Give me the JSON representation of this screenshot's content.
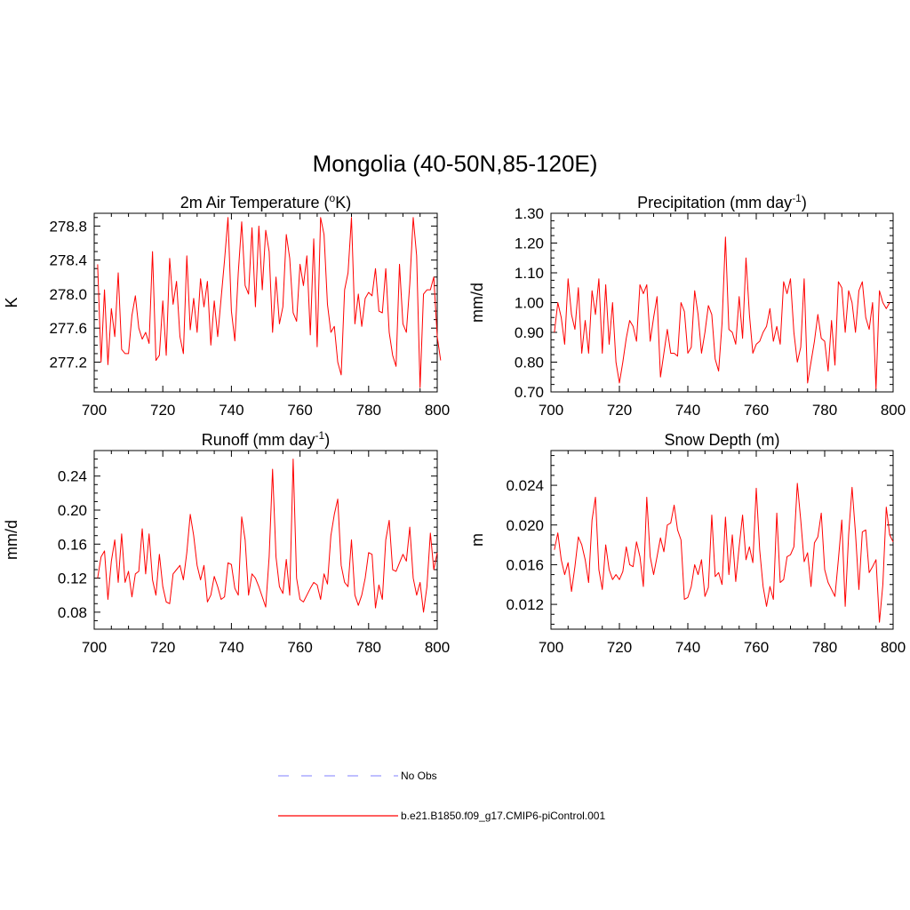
{
  "title": "Mongolia (40-50N,85-120E)",
  "colors": {
    "model": "#ff0000",
    "obs": "#9999ff",
    "axis": "#000000"
  },
  "legend": [
    {
      "label": "No Obs",
      "style": "dashed",
      "color": "#9999ff"
    },
    {
      "label": "b.e21.B1850.f09_g17.CMIP6-piControl.001",
      "style": "solid",
      "color": "#ff0000"
    }
  ],
  "chart_data": [
    {
      "type": "line",
      "title": "2m Air Temperature (",
      "title_sup": "o",
      "title_tail": "K)",
      "xlabel": "",
      "ylabel": "K",
      "xlim": [
        700,
        800
      ],
      "ylim": [
        276.85,
        278.95
      ],
      "xticks": [
        700,
        720,
        740,
        760,
        780,
        800
      ],
      "xtick_labels": [
        "700",
        "720",
        "740",
        "760",
        "780",
        "800"
      ],
      "yticks": [
        277.2,
        277.6,
        278.0,
        278.4,
        278.8
      ],
      "ytick_labels": [
        "277.2",
        "277.6",
        "278.0",
        "278.4",
        "278.8"
      ],
      "series": [
        {
          "name": "b.e21.B1850.f09_g17.CMIP6-piControl.001",
          "x_start": 701,
          "x_step": 1,
          "values": [
            278.35,
            277.2,
            278.05,
            277.17,
            277.83,
            277.5,
            278.25,
            277.35,
            277.3,
            277.3,
            277.75,
            277.98,
            277.6,
            277.47,
            277.55,
            277.42,
            278.5,
            277.22,
            277.28,
            277.92,
            277.28,
            278.42,
            277.88,
            278.15,
            277.5,
            277.3,
            278.45,
            277.58,
            277.95,
            277.55,
            278.18,
            277.85,
            278.15,
            277.4,
            277.92,
            277.5,
            277.95,
            278.4,
            278.9,
            277.8,
            277.45,
            278.25,
            278.85,
            278.1,
            278.0,
            278.78,
            277.85,
            278.8,
            278.05,
            278.75,
            278.5,
            277.55,
            278.2,
            277.65,
            277.85,
            278.7,
            278.42,
            277.78,
            277.68,
            278.35,
            278.1,
            278.45,
            277.52,
            278.65,
            277.38,
            278.9,
            278.7,
            277.88,
            277.55,
            277.62,
            277.2,
            277.05,
            278.05,
            278.25,
            278.9,
            277.65,
            278.0,
            277.62,
            277.95,
            278.02,
            277.98,
            278.3,
            277.8,
            277.78,
            278.3,
            277.55,
            277.28,
            277.15,
            278.35,
            277.65,
            277.55,
            278.12,
            278.9,
            278.45,
            276.9,
            278.0,
            278.05,
            278.05,
            278.2,
            277.5,
            277.22
          ]
        }
      ]
    },
    {
      "type": "line",
      "title": "Precipitation (mm day",
      "title_sup": "-1",
      "title_tail": ")",
      "xlabel": "",
      "ylabel": "mm/d",
      "xlim": [
        700,
        800
      ],
      "ylim": [
        0.7,
        1.3
      ],
      "xticks": [
        700,
        720,
        740,
        760,
        780,
        800
      ],
      "xtick_labels": [
        "700",
        "720",
        "740",
        "760",
        "780",
        "800"
      ],
      "yticks": [
        0.7,
        0.8,
        0.9,
        1.0,
        1.1,
        1.2,
        1.3
      ],
      "ytick_labels": [
        "0.70",
        "0.80",
        "0.90",
        "1.00",
        "1.10",
        "1.20",
        "1.30"
      ],
      "series": [
        {
          "name": "b.e21.B1850.f09_g17.CMIP6-piControl.001",
          "x_start": 701,
          "x_step": 1,
          "values": [
            0.9,
            1.0,
            0.95,
            0.86,
            1.08,
            0.96,
            0.91,
            1.05,
            0.83,
            0.94,
            0.83,
            1.04,
            0.96,
            1.08,
            0.83,
            1.06,
            0.86,
            1.0,
            0.8,
            0.73,
            0.8,
            0.88,
            0.94,
            0.92,
            0.87,
            1.06,
            1.03,
            1.06,
            0.87,
            0.95,
            1.02,
            0.75,
            0.83,
            0.91,
            0.83,
            0.83,
            0.82,
            1.0,
            0.97,
            0.83,
            0.85,
            1.04,
            0.96,
            0.83,
            0.9,
            0.99,
            0.96,
            0.81,
            0.77,
            0.93,
            1.22,
            0.91,
            0.9,
            0.86,
            1.02,
            0.88,
            1.15,
            0.96,
            0.83,
            0.86,
            0.87,
            0.9,
            0.92,
            0.98,
            0.87,
            0.92,
            0.86,
            1.07,
            1.03,
            1.08,
            0.9,
            0.8,
            0.85,
            1.08,
            0.73,
            0.8,
            0.87,
            0.96,
            0.88,
            0.87,
            0.77,
            0.94,
            0.79,
            1.07,
            1.05,
            0.9,
            1.04,
            1.0,
            0.9,
            1.04,
            1.07,
            0.95,
            0.91,
            1.0,
            0.71,
            1.04,
            1.0,
            0.98,
            1.0
          ]
        }
      ]
    },
    {
      "type": "line",
      "title": "Runoff (mm day",
      "title_sup": "-1",
      "title_tail": ")",
      "xlabel": "",
      "ylabel": "mm/d",
      "xlim": [
        700,
        800
      ],
      "ylim": [
        0.06,
        0.27
      ],
      "xticks": [
        700,
        720,
        740,
        760,
        780,
        800
      ],
      "xtick_labels": [
        "700",
        "720",
        "740",
        "760",
        "780",
        "800"
      ],
      "yticks": [
        0.08,
        0.12,
        0.16,
        0.2,
        0.24
      ],
      "ytick_labels": [
        "0.08",
        "0.12",
        "0.16",
        "0.20",
        "0.24"
      ],
      "series": [
        {
          "name": "b.e21.B1850.f09_g17.CMIP6-piControl.001",
          "x_start": 701,
          "x_step": 1,
          "values": [
            0.12,
            0.145,
            0.152,
            0.095,
            0.14,
            0.165,
            0.115,
            0.172,
            0.115,
            0.128,
            0.098,
            0.125,
            0.128,
            0.178,
            0.125,
            0.172,
            0.118,
            0.1,
            0.148,
            0.11,
            0.092,
            0.09,
            0.125,
            0.13,
            0.135,
            0.118,
            0.15,
            0.195,
            0.17,
            0.135,
            0.118,
            0.135,
            0.092,
            0.1,
            0.122,
            0.11,
            0.095,
            0.098,
            0.138,
            0.136,
            0.108,
            0.1,
            0.192,
            0.165,
            0.1,
            0.125,
            0.12,
            0.11,
            0.098,
            0.086,
            0.145,
            0.248,
            0.145,
            0.11,
            0.102,
            0.142,
            0.1,
            0.26,
            0.12,
            0.095,
            0.092,
            0.1,
            0.108,
            0.115,
            0.112,
            0.095,
            0.125,
            0.113,
            0.17,
            0.195,
            0.213,
            0.135,
            0.115,
            0.11,
            0.165,
            0.1,
            0.088,
            0.1,
            0.12,
            0.15,
            0.148,
            0.085,
            0.112,
            0.095,
            0.165,
            0.188,
            0.13,
            0.128,
            0.138,
            0.148,
            0.14,
            0.18,
            0.12,
            0.1,
            0.115,
            0.08,
            0.11,
            0.173,
            0.13,
            0.15
          ]
        }
      ]
    },
    {
      "type": "line",
      "title": "Snow Depth (m)",
      "title_sup": "",
      "title_tail": "",
      "xlabel": "",
      "ylabel": "m",
      "xlim": [
        700,
        800
      ],
      "ylim": [
        0.0095,
        0.0275
      ],
      "xticks": [
        700,
        720,
        740,
        760,
        780,
        800
      ],
      "xtick_labels": [
        "700",
        "720",
        "740",
        "760",
        "780",
        "800"
      ],
      "yticks": [
        0.012,
        0.016,
        0.02,
        0.024
      ],
      "ytick_labels": [
        "0.012",
        "0.016",
        "0.020",
        "0.024"
      ],
      "series": [
        {
          "name": "b.e21.B1850.f09_g17.CMIP6-piControl.001",
          "x_start": 701,
          "x_step": 1,
          "values": [
            0.0175,
            0.0192,
            0.0165,
            0.015,
            0.0162,
            0.0133,
            0.0158,
            0.0188,
            0.018,
            0.0165,
            0.0142,
            0.0205,
            0.0228,
            0.0155,
            0.0135,
            0.018,
            0.0155,
            0.0145,
            0.015,
            0.0145,
            0.0153,
            0.0178,
            0.016,
            0.0158,
            0.0183,
            0.0168,
            0.0138,
            0.0228,
            0.0168,
            0.015,
            0.0168,
            0.0187,
            0.0173,
            0.02,
            0.0202,
            0.022,
            0.0195,
            0.0185,
            0.0125,
            0.0127,
            0.0138,
            0.016,
            0.015,
            0.0165,
            0.0128,
            0.0137,
            0.021,
            0.0148,
            0.0152,
            0.014,
            0.0208,
            0.015,
            0.019,
            0.0143,
            0.0178,
            0.021,
            0.0165,
            0.0178,
            0.0162,
            0.0237,
            0.0175,
            0.0138,
            0.0118,
            0.0138,
            0.0125,
            0.0212,
            0.0142,
            0.0145,
            0.0168,
            0.017,
            0.0178,
            0.0242,
            0.0205,
            0.0163,
            0.0172,
            0.0138,
            0.0182,
            0.0188,
            0.0212,
            0.0155,
            0.0142,
            0.0135,
            0.0128,
            0.0165,
            0.0205,
            0.0118,
            0.019,
            0.0238,
            0.0192,
            0.0135,
            0.0193,
            0.0195,
            0.0152,
            0.0158,
            0.0165,
            0.0102,
            0.014,
            0.0218,
            0.019,
            0.0183
          ]
        }
      ]
    }
  ]
}
